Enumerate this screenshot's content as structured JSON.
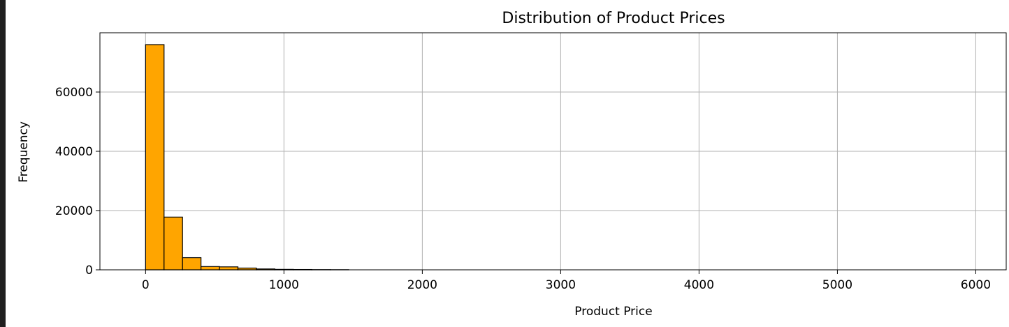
{
  "colors": {
    "bar_fill": "#FFA500",
    "bar_edge": "#000000",
    "grid": "#b0b0b0",
    "background": "#ffffff",
    "left_strip": "#1f1f1f"
  },
  "chart_data": {
    "type": "bar",
    "title": "Distribution of Product Prices",
    "xlabel": "Product Price",
    "ylabel": "Frequency",
    "bin_width": 133.5,
    "bins": [
      {
        "x0": 0,
        "x1": 133.5,
        "value": 76000
      },
      {
        "x0": 133.5,
        "x1": 267,
        "value": 17800
      },
      {
        "x0": 267,
        "x1": 400.5,
        "value": 4100
      },
      {
        "x0": 400.5,
        "x1": 534,
        "value": 1100
      },
      {
        "x0": 534,
        "x1": 667.5,
        "value": 1000
      },
      {
        "x0": 667.5,
        "x1": 801,
        "value": 600
      },
      {
        "x0": 801,
        "x1": 934.5,
        "value": 300
      },
      {
        "x0": 934.5,
        "x1": 1068,
        "value": 150
      },
      {
        "x0": 1068,
        "x1": 1201.5,
        "value": 100
      },
      {
        "x0": 1201.5,
        "x1": 1335,
        "value": 60
      },
      {
        "x0": 1335,
        "x1": 1468.5,
        "value": 40
      }
    ],
    "xlim": [
      -330,
      6220
    ],
    "ylim": [
      0,
      80000
    ],
    "xticks": [
      0,
      1000,
      2000,
      3000,
      4000,
      5000,
      6000
    ],
    "xtick_labels": [
      "0",
      "1000",
      "2000",
      "3000",
      "4000",
      "5000",
      "6000"
    ],
    "yticks": [
      0,
      20000,
      40000,
      60000
    ],
    "ytick_labels": [
      "0",
      "20000",
      "40000",
      "60000"
    ],
    "grid": true
  }
}
